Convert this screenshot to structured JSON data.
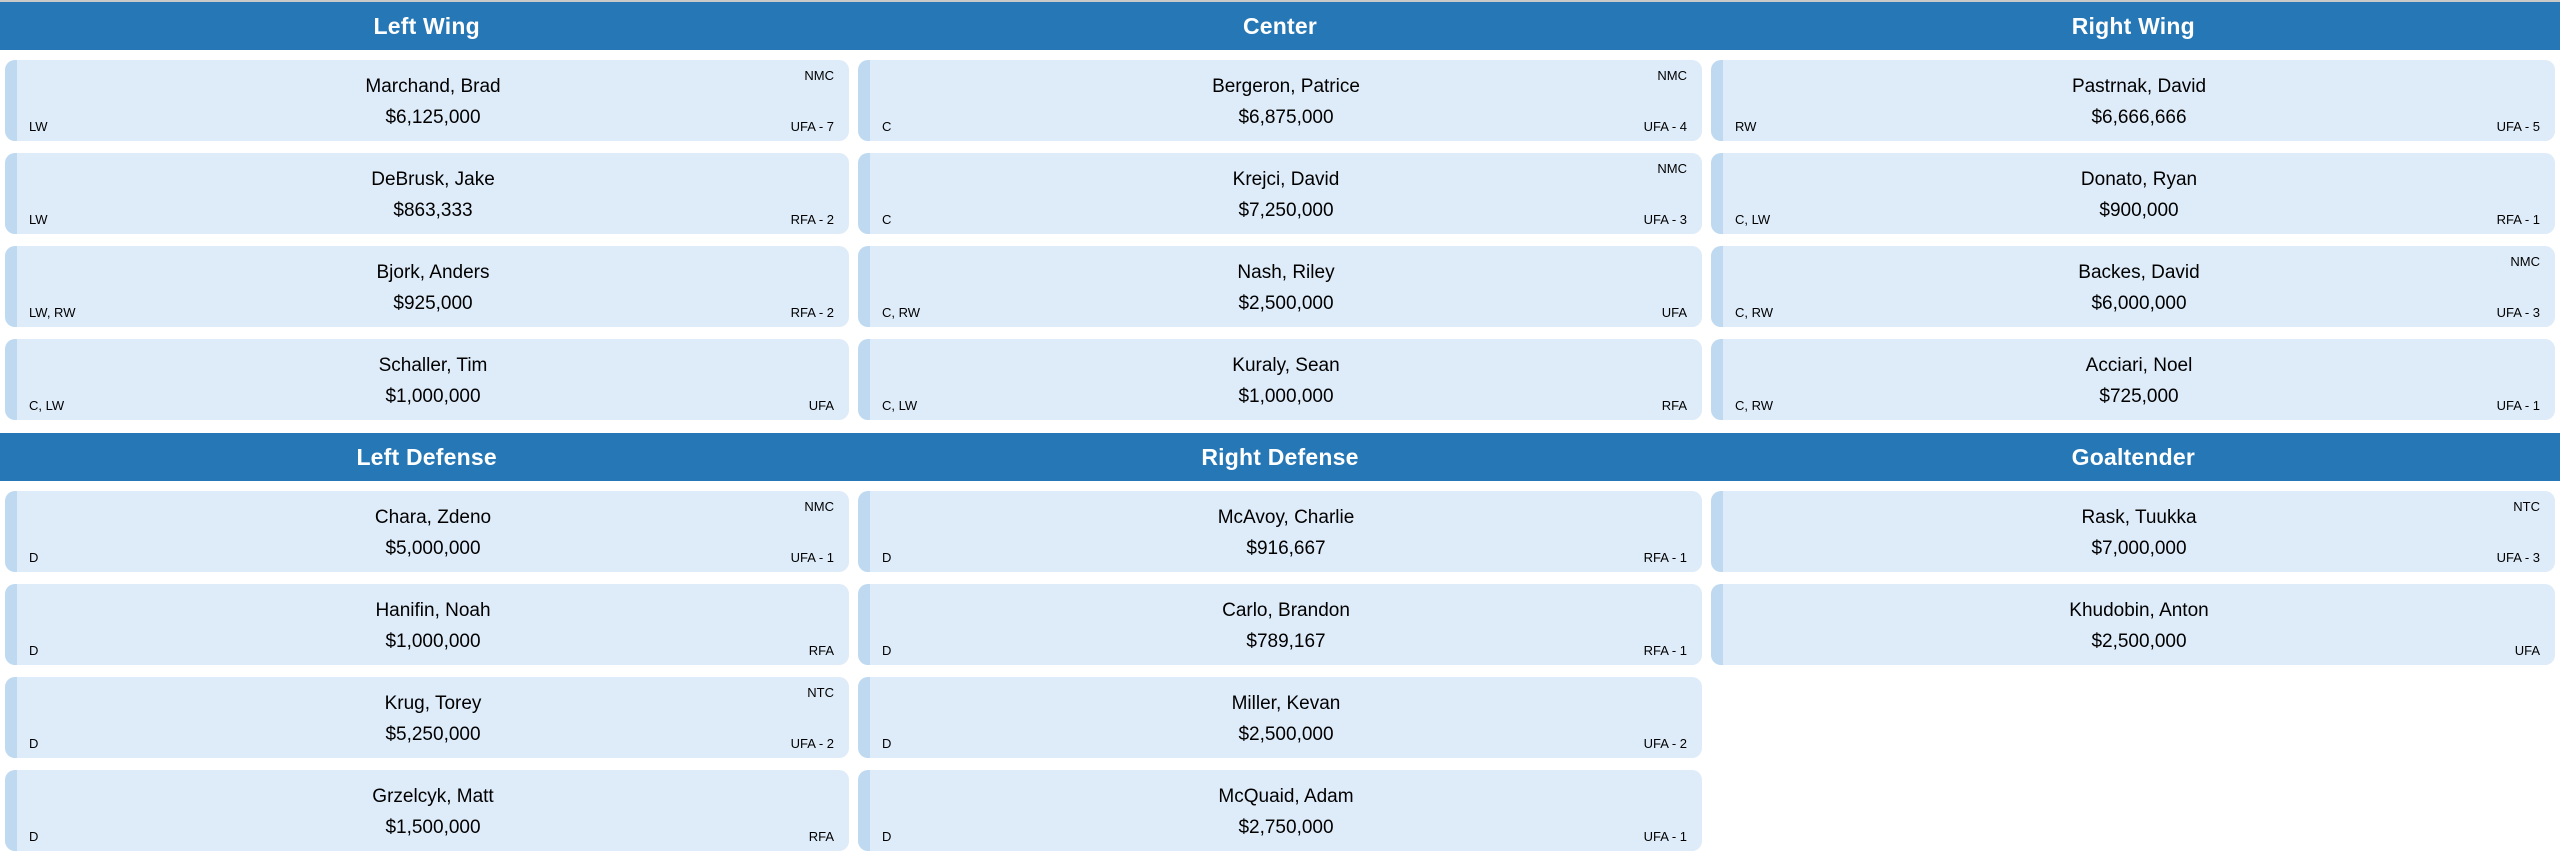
{
  "colors": {
    "header_bg": "#2577b5",
    "header_text": "#ffffff",
    "card_bg": "#deebf9",
    "card_accent": "#bed9f0",
    "top_line": "#c9c9c9"
  },
  "sections": [
    {
      "columns": [
        {
          "title": "Left Wing",
          "players": [
            {
              "name": "Marchand, Brad",
              "salary": "$6,125,000",
              "position": "LW",
              "clause": "NMC",
              "status": "UFA - 7"
            },
            {
              "name": "DeBrusk, Jake",
              "salary": "$863,333",
              "position": "LW",
              "clause": "",
              "status": "RFA - 2"
            },
            {
              "name": "Bjork, Anders",
              "salary": "$925,000",
              "position": "LW, RW",
              "clause": "",
              "status": "RFA - 2"
            },
            {
              "name": "Schaller, Tim",
              "salary": "$1,000,000",
              "position": "C, LW",
              "clause": "",
              "status": "UFA"
            }
          ]
        },
        {
          "title": "Center",
          "players": [
            {
              "name": "Bergeron, Patrice",
              "salary": "$6,875,000",
              "position": "C",
              "clause": "NMC",
              "status": "UFA - 4"
            },
            {
              "name": "Krejci, David",
              "salary": "$7,250,000",
              "position": "C",
              "clause": "NMC",
              "status": "UFA - 3"
            },
            {
              "name": "Nash, Riley",
              "salary": "$2,500,000",
              "position": "C, RW",
              "clause": "",
              "status": "UFA"
            },
            {
              "name": "Kuraly, Sean",
              "salary": "$1,000,000",
              "position": "C, LW",
              "clause": "",
              "status": "RFA"
            }
          ]
        },
        {
          "title": "Right Wing",
          "players": [
            {
              "name": "Pastrnak, David",
              "salary": "$6,666,666",
              "position": "RW",
              "clause": "",
              "status": "UFA - 5"
            },
            {
              "name": "Donato, Ryan",
              "salary": "$900,000",
              "position": "C, LW",
              "clause": "",
              "status": "RFA - 1"
            },
            {
              "name": "Backes, David",
              "salary": "$6,000,000",
              "position": "C, RW",
              "clause": "NMC",
              "status": "UFA - 3"
            },
            {
              "name": "Acciari, Noel",
              "salary": "$725,000",
              "position": "C, RW",
              "clause": "",
              "status": "UFA - 1"
            }
          ]
        }
      ]
    },
    {
      "columns": [
        {
          "title": "Left Defense",
          "players": [
            {
              "name": "Chara, Zdeno",
              "salary": "$5,000,000",
              "position": "D",
              "clause": "NMC",
              "status": "UFA - 1"
            },
            {
              "name": "Hanifin, Noah",
              "salary": "$1,000,000",
              "position": "D",
              "clause": "",
              "status": "RFA"
            },
            {
              "name": "Krug, Torey",
              "salary": "$5,250,000",
              "position": "D",
              "clause": "NTC",
              "status": "UFA - 2"
            },
            {
              "name": "Grzelcyk, Matt",
              "salary": "$1,500,000",
              "position": "D",
              "clause": "",
              "status": "RFA"
            }
          ]
        },
        {
          "title": "Right Defense",
          "players": [
            {
              "name": "McAvoy, Charlie",
              "salary": "$916,667",
              "position": "D",
              "clause": "",
              "status": "RFA - 1"
            },
            {
              "name": "Carlo, Brandon",
              "salary": "$789,167",
              "position": "D",
              "clause": "",
              "status": "RFA - 1"
            },
            {
              "name": "Miller, Kevan",
              "salary": "$2,500,000",
              "position": "D",
              "clause": "",
              "status": "UFA - 2"
            },
            {
              "name": "McQuaid, Adam",
              "salary": "$2,750,000",
              "position": "D",
              "clause": "",
              "status": "UFA - 1"
            }
          ]
        },
        {
          "title": "Goaltender",
          "players": [
            {
              "name": "Rask, Tuukka",
              "salary": "$7,000,000",
              "position": "",
              "clause": "NTC",
              "status": "UFA - 3"
            },
            {
              "name": "Khudobin, Anton",
              "salary": "$2,500,000",
              "position": "",
              "clause": "",
              "status": "UFA"
            }
          ]
        }
      ]
    }
  ]
}
